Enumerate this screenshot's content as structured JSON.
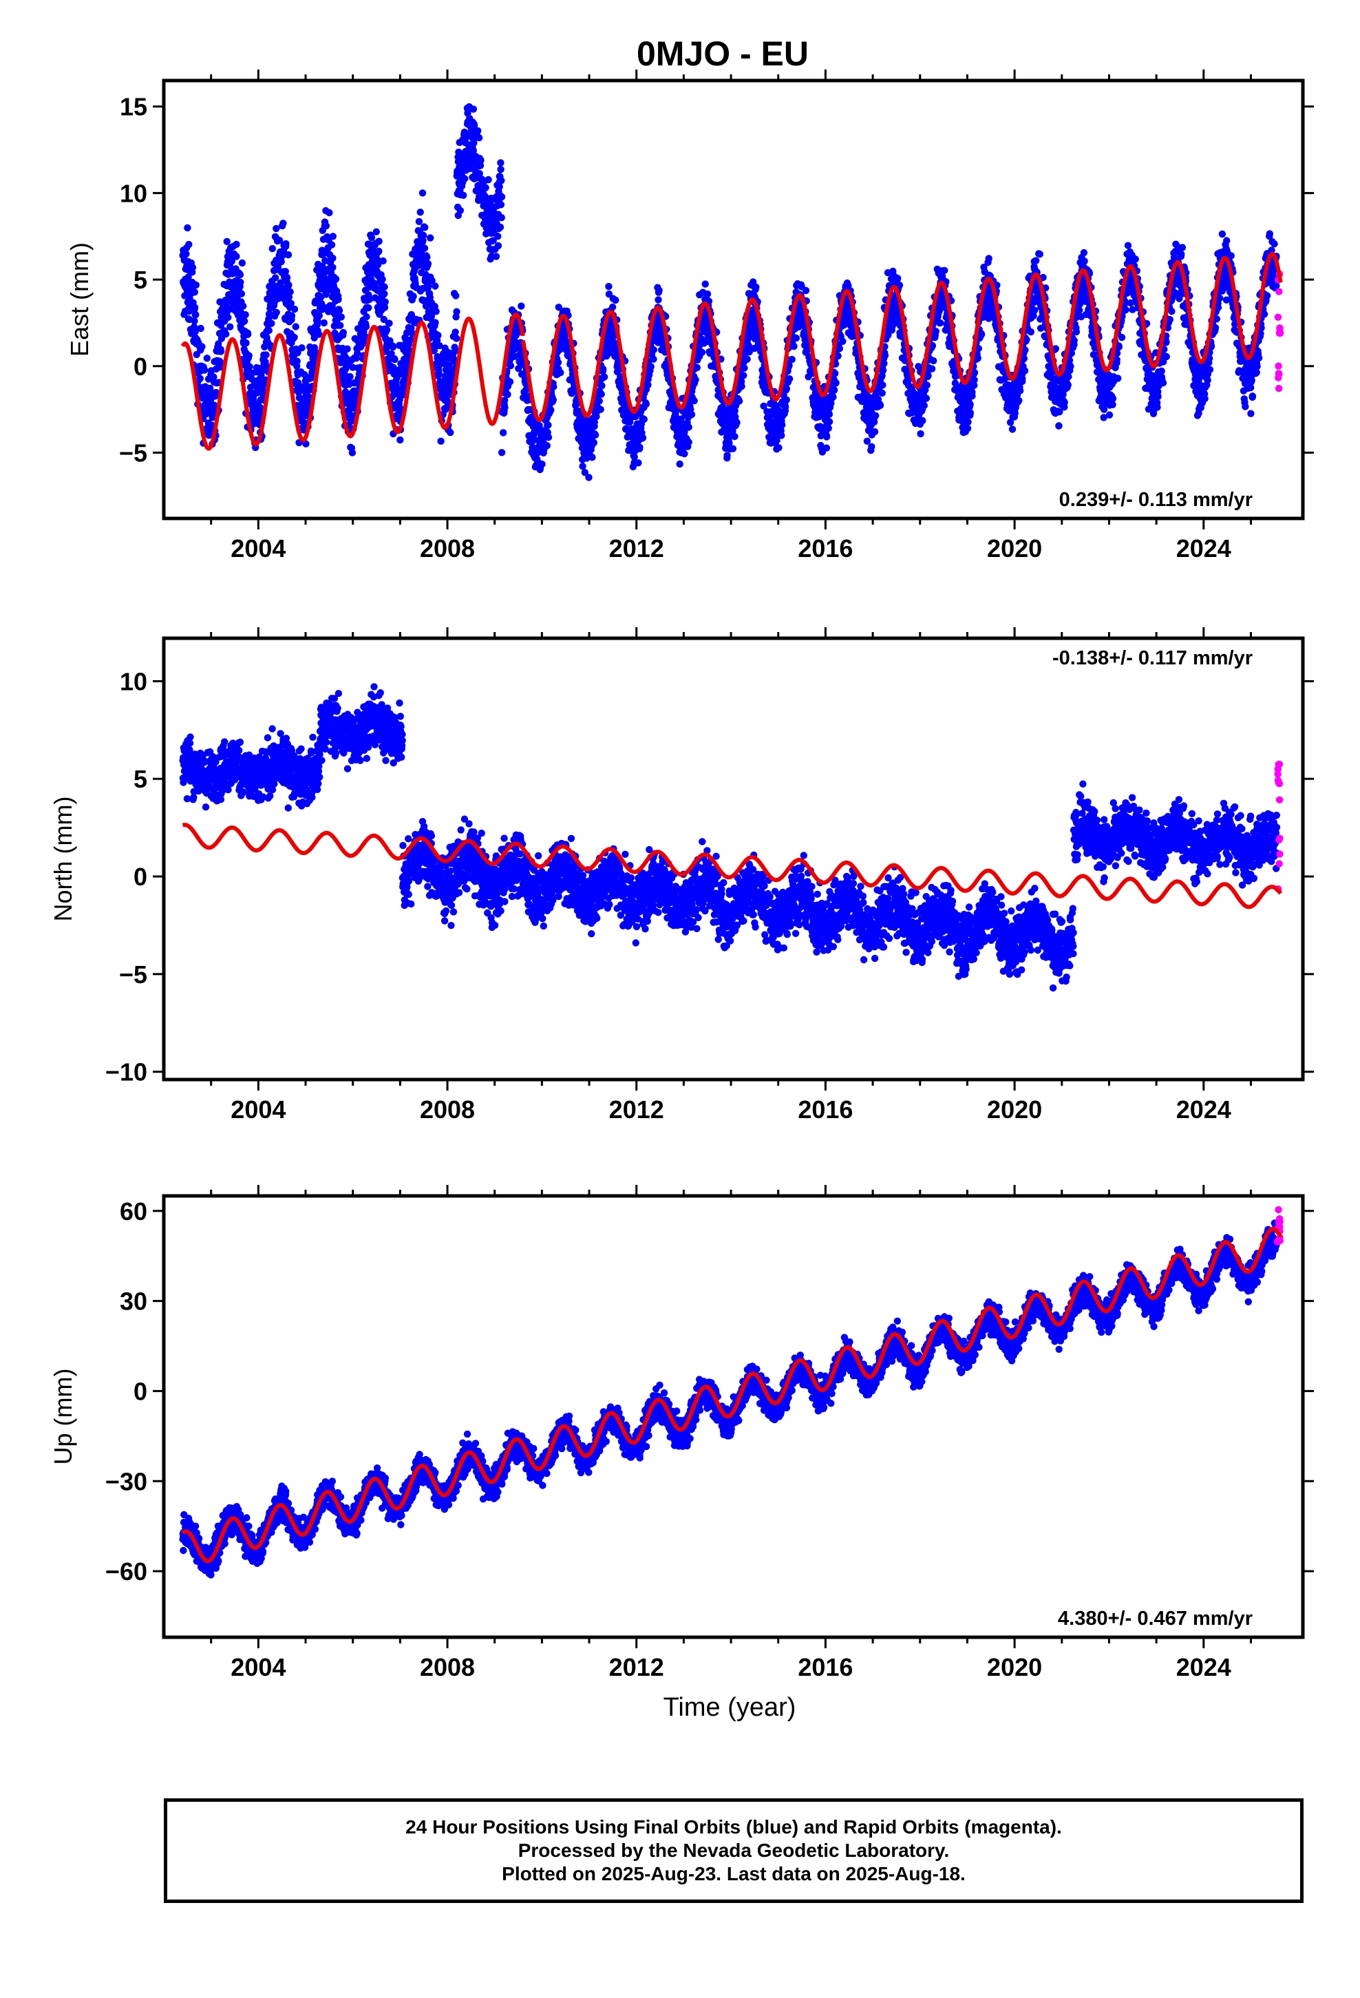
{
  "title": "0MJO - EU",
  "xlabel": "Time (year)",
  "footer": {
    "line1": "24 Hour Positions Using Final Orbits (blue) and Rapid Orbits (magenta).",
    "line2": "Processed by the Nevada Geodetic Laboratory.",
    "line3": "Plotted on 2025-Aug-23. Last data on 2025-Aug-18."
  },
  "colors": {
    "final": "#0000ff",
    "rapid": "#ff00ff",
    "model": "#ee0000",
    "axis": "#000000"
  },
  "chart_data": [
    {
      "type": "scatter",
      "panel": "east",
      "ylabel": "East (mm)",
      "rate_label": "0.239+/- 0.113 mm/yr",
      "xlim": [
        2002.0,
        2026.1
      ],
      "ylim": [
        -8.8,
        16.5
      ],
      "xticks": [
        2004,
        2008,
        2012,
        2016,
        2020,
        2024
      ],
      "yticks": [
        -5,
        0,
        5,
        10,
        15
      ],
      "yticklabels": [
        "−5",
        "0",
        "5",
        "10",
        "15"
      ],
      "data_start": 2002.4,
      "data_end": 2025.63,
      "final_orbit_segments": [
        {
          "t_start": 2002.4,
          "t_end": 2008.2,
          "trend_start": 1.2,
          "trend_end": 2.4,
          "amplitude": 4.0,
          "scatter": 2.4
        },
        {
          "t_start": 2008.2,
          "t_end": 2009.15,
          "trend_start": 10.0,
          "trend_end": 11.0,
          "amplitude": 3.0,
          "scatter": 2.0
        },
        {
          "t_start": 2009.15,
          "t_end": 2025.55,
          "trend_start": -1.7,
          "trend_end": 2.8,
          "amplitude": 3.4,
          "scatter": 1.6
        }
      ],
      "rapid_orbit_range": [
        -1.8,
        6.2
      ],
      "model": [
        {
          "t_start": 2002.4,
          "t_end": 2009.6,
          "offset": -1.8,
          "rate": 0.239,
          "amplitude": 3.1
        },
        {
          "t_start": 2009.6,
          "t_end": 2025.63,
          "offset": -0.25,
          "rate": 0.239,
          "amplitude": 2.95
        }
      ]
    },
    {
      "type": "scatter",
      "panel": "north",
      "ylabel": "North (mm)",
      "rate_label": "-0.138+/- 0.117 mm/yr",
      "xlim": [
        2002.0,
        2026.1
      ],
      "ylim": [
        -10.4,
        12.2
      ],
      "xticks": [
        2004,
        2008,
        2012,
        2016,
        2020,
        2024
      ],
      "yticks": [
        -10,
        -5,
        0,
        5,
        10
      ],
      "yticklabels": [
        "−10",
        "−5",
        "0",
        "5",
        "10"
      ],
      "data_start": 2002.4,
      "data_end": 2025.63,
      "final_orbit_segments": [
        {
          "t_start": 2002.4,
          "t_end": 2005.3,
          "trend_start": 5.4,
          "trend_end": 5.4,
          "amplitude": 0.4,
          "scatter": 1.2
        },
        {
          "t_start": 2005.3,
          "t_end": 2007.05,
          "trend_start": 7.4,
          "trend_end": 7.6,
          "amplitude": 0.5,
          "scatter": 1.3
        },
        {
          "t_start": 2007.05,
          "t_end": 2021.25,
          "trend_start": 0.6,
          "trend_end": -3.2,
          "amplitude": 0.8,
          "scatter": 1.4
        },
        {
          "t_start": 2021.25,
          "t_end": 2025.55,
          "trend_start": 2.1,
          "trend_end": 1.6,
          "amplitude": 0.6,
          "scatter": 1.3
        }
      ],
      "rapid_orbit_range": [
        -0.8,
        6.7
      ],
      "model": [
        {
          "t_start": 2002.4,
          "t_end": 2025.63,
          "offset": 2.1,
          "rate": -0.138,
          "amplitude": 0.55
        }
      ]
    },
    {
      "type": "scatter",
      "panel": "up",
      "ylabel": "Up (mm)",
      "rate_label": "4.380+/- 0.467 mm/yr",
      "xlim": [
        2002.0,
        2026.1
      ],
      "ylim": [
        -82,
        65
      ],
      "xticks": [
        2004,
        2008,
        2012,
        2016,
        2020,
        2024
      ],
      "yticks": [
        -60,
        -30,
        0,
        30,
        60
      ],
      "yticklabels": [
        "−60",
        "−30",
        "0",
        "30",
        "60"
      ],
      "data_start": 2002.4,
      "data_end": 2025.63,
      "final_orbit_segments": [
        {
          "t_start": 2002.4,
          "t_end": 2025.55,
          "trend_start": -53.0,
          "trend_end": 45.0,
          "amplitude": 6.0,
          "scatter": 4.5
        }
      ],
      "rapid_orbit_range": [
        48.0,
        62.0
      ],
      "model": [
        {
          "t_start": 2002.4,
          "t_end": 2025.63,
          "offset": -53.0,
          "rate": 4.38,
          "amplitude": 6.0
        }
      ]
    }
  ]
}
